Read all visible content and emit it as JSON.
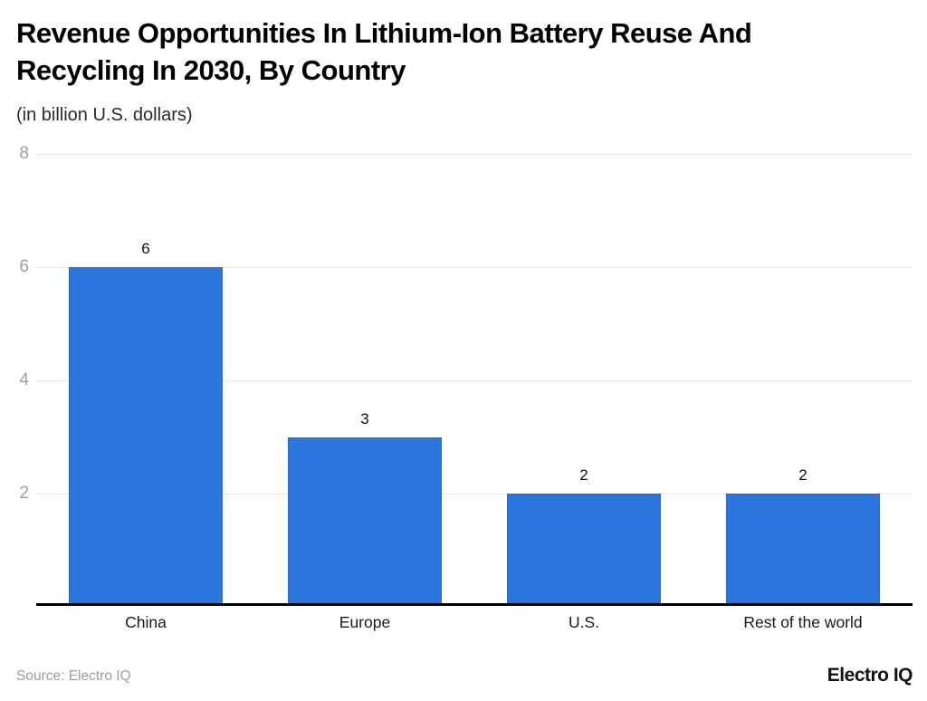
{
  "header": {
    "title": "Revenue Opportunities In Lithium-Ion Battery Reuse And Recycling In 2030, By Country",
    "subtitle": "(in billion U.S. dollars)"
  },
  "footer": {
    "source": "Source: Electro IQ",
    "logo": "Electro IQ"
  },
  "colors": {
    "bar": "#2A76DD",
    "gridline": "#e7e7e7",
    "tick_label": "#9aa0a6",
    "axis_line": "#000000"
  },
  "chart_data": {
    "type": "bar",
    "title": "Revenue Opportunities In Lithium-Ion Battery Reuse And Recycling In 2030, By Country",
    "subtitle": "(in billion U.S. dollars)",
    "categories": [
      "China",
      "Europe",
      "U.S.",
      "Rest of the world"
    ],
    "values": [
      6,
      3,
      2,
      2
    ],
    "value_labels": [
      "6",
      "3",
      "2",
      "2"
    ],
    "xlabel": "",
    "ylabel": "",
    "ylim": [
      0,
      8
    ],
    "y_ticks": [
      2,
      4,
      6,
      8
    ],
    "grid": "horizontal",
    "legend": "none",
    "bar_color": "#2A76DD"
  }
}
